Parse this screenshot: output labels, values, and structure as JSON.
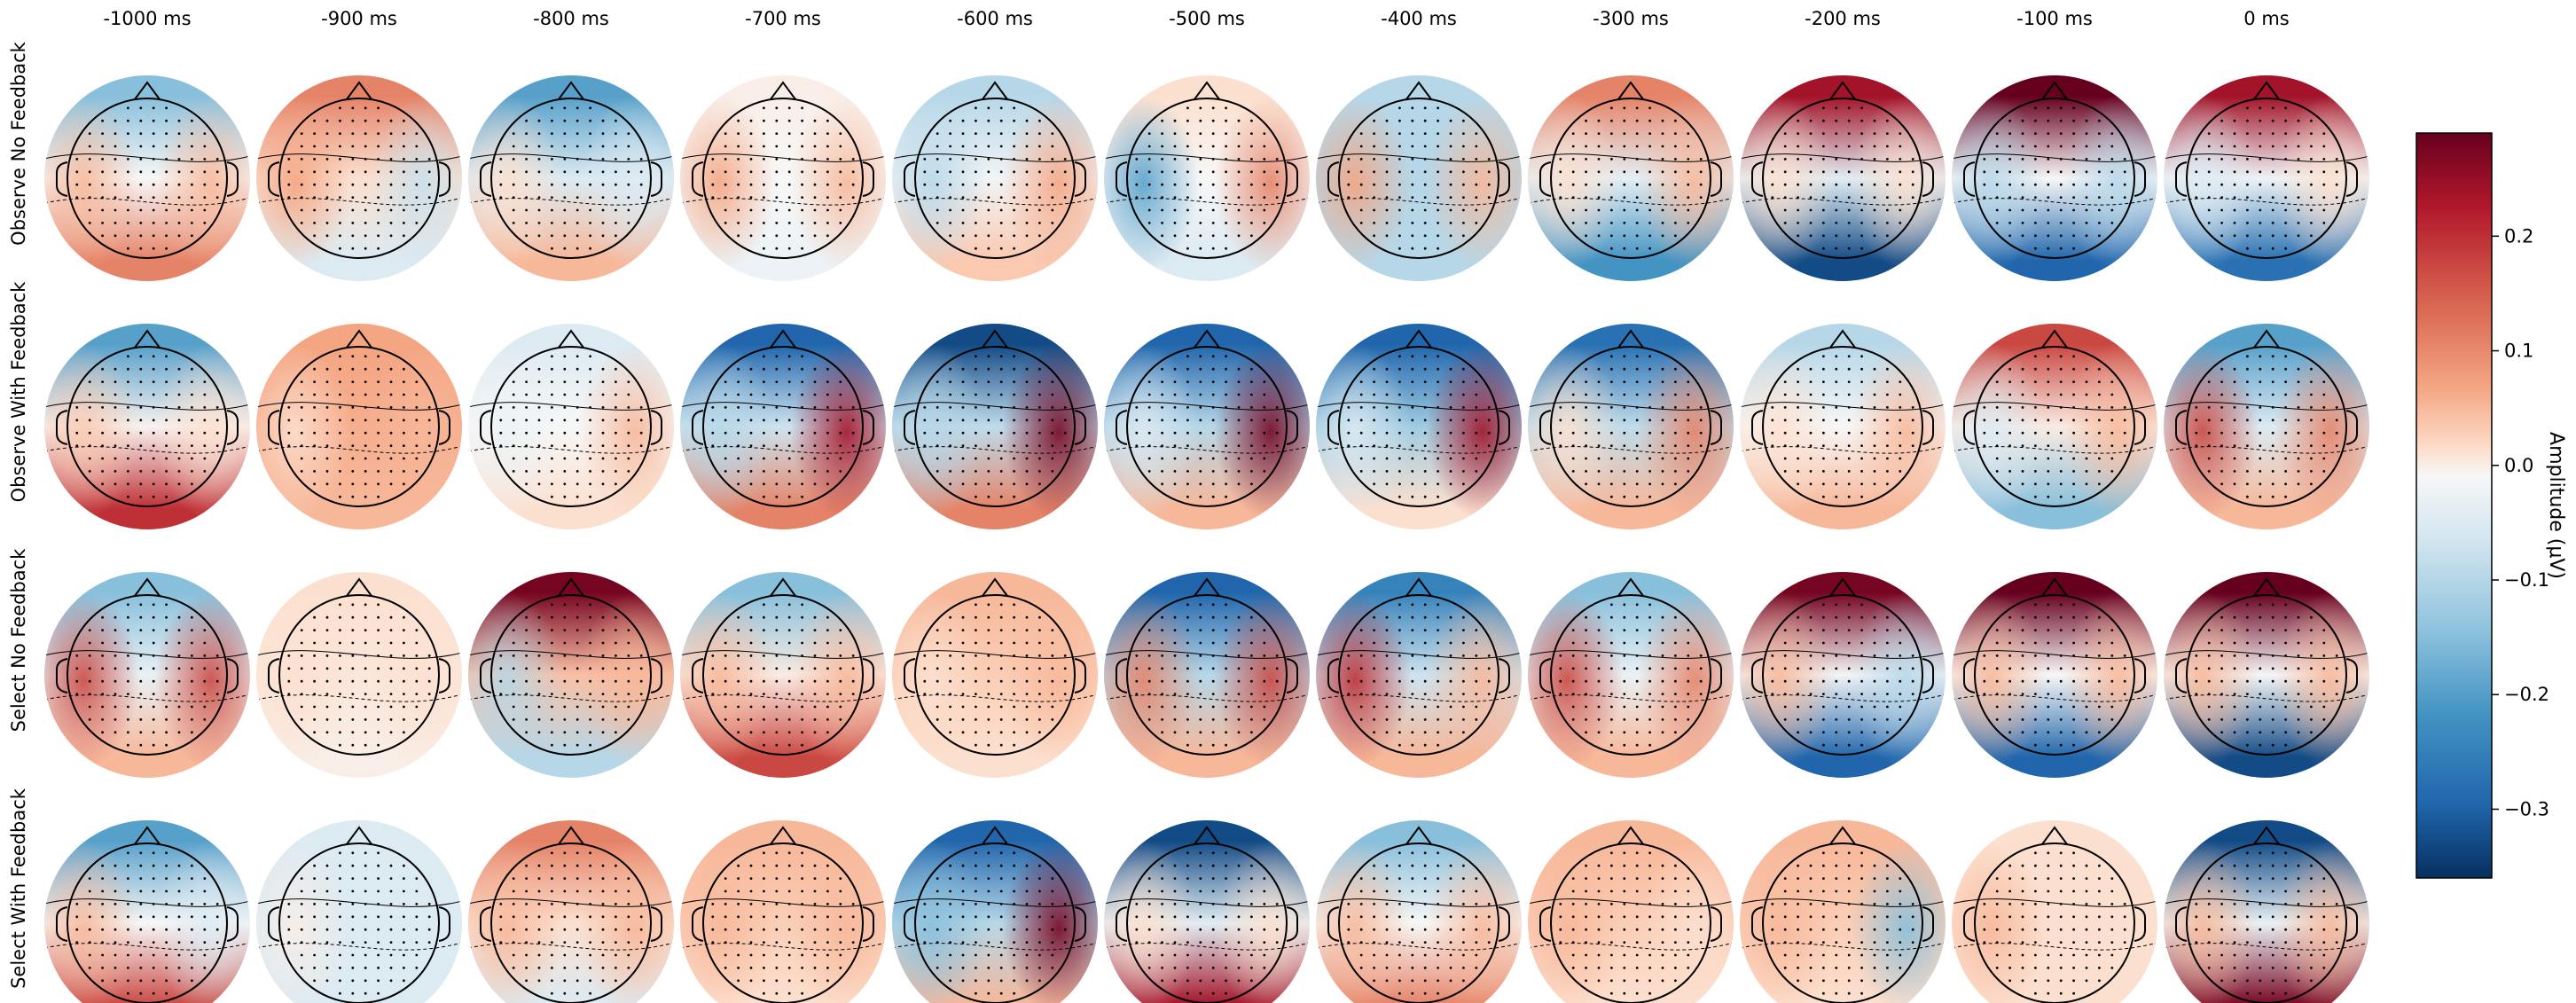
{
  "chart_data": {
    "type": "heatmap",
    "title": "",
    "columns": [
      "-1000 ms",
      "-900 ms",
      "-800 ms",
      "-700 ms",
      "-600 ms",
      "-500 ms",
      "-400 ms",
      "-300 ms",
      "-200 ms",
      "-100 ms",
      "0 ms"
    ],
    "rows": [
      "Observe No Feedback",
      "Observe With Feedback",
      "Select No Feedback",
      "Select With Feedback"
    ],
    "colormap": "RdBu_r",
    "colors": {
      "negative": "#053061",
      "neutral": "#f7f7f7",
      "positive": "#67001f"
    },
    "colorbar": {
      "label": "Amplitude (μV)",
      "range": [
        -0.36,
        0.29
      ],
      "ticks": [
        0.2,
        0.1,
        0.0,
        -0.1,
        -0.2,
        -0.3
      ],
      "tick_labels": [
        "0.2",
        "0.1",
        "0.0",
        "−0.1",
        "−0.2",
        "−0.3"
      ]
    },
    "maps": [
      [
        {
          "front": -0.15,
          "back": 0.15,
          "left": 0.1,
          "right": 0.1
        },
        {
          "front": 0.15,
          "back": -0.05,
          "left": 0.12,
          "right": -0.08
        },
        {
          "front": -0.2,
          "back": 0.1,
          "left": 0.05,
          "right": -0.05
        },
        {
          "front": 0.02,
          "back": -0.02,
          "left": 0.12,
          "right": 0.1
        },
        {
          "front": -0.1,
          "back": 0.08,
          "left": -0.1,
          "right": 0.12
        },
        {
          "front": 0.05,
          "back": -0.05,
          "left": -0.2,
          "right": 0.15
        },
        {
          "front": -0.1,
          "back": -0.1,
          "left": 0.12,
          "right": 0.1
        },
        {
          "front": 0.15,
          "back": -0.22,
          "left": 0.05,
          "right": 0.1
        },
        {
          "front": 0.25,
          "back": -0.33,
          "left": 0.05,
          "right": 0.05
        },
        {
          "front": 0.3,
          "back": -0.3,
          "left": -0.1,
          "right": -0.1
        },
        {
          "front": 0.25,
          "back": -0.28,
          "left": -0.05,
          "right": 0.05
        }
      ],
      [
        {
          "front": -0.2,
          "back": 0.22,
          "left": 0.08,
          "right": 0.05
        },
        {
          "front": 0.12,
          "back": 0.1,
          "left": 0.05,
          "right": 0.1
        },
        {
          "front": -0.05,
          "back": 0.05,
          "left": -0.02,
          "right": 0.1
        },
        {
          "front": -0.3,
          "back": 0.15,
          "left": -0.1,
          "right": 0.25
        },
        {
          "front": -0.33,
          "back": 0.15,
          "left": -0.1,
          "right": 0.28
        },
        {
          "front": -0.3,
          "back": 0.1,
          "left": -0.05,
          "right": 0.28
        },
        {
          "front": -0.3,
          "back": 0.05,
          "left": -0.05,
          "right": 0.25
        },
        {
          "front": -0.28,
          "back": 0.1,
          "left": 0.05,
          "right": 0.15
        },
        {
          "front": -0.1,
          "back": 0.1,
          "left": 0.05,
          "right": 0.1
        },
        {
          "front": 0.2,
          "back": -0.15,
          "left": -0.05,
          "right": 0.1
        },
        {
          "front": -0.2,
          "back": 0.1,
          "left": 0.2,
          "right": 0.15
        }
      ],
      [
        {
          "front": -0.15,
          "back": 0.1,
          "left": 0.2,
          "right": 0.2
        },
        {
          "front": 0.05,
          "back": 0.02,
          "left": 0.05,
          "right": 0.05
        },
        {
          "front": 0.28,
          "back": -0.1,
          "left": -0.1,
          "right": 0.1
        },
        {
          "front": -0.15,
          "back": 0.2,
          "left": 0.1,
          "right": 0.1
        },
        {
          "front": 0.1,
          "back": 0.05,
          "left": 0.05,
          "right": 0.1
        },
        {
          "front": -0.3,
          "back": 0.1,
          "left": 0.15,
          "right": 0.2
        },
        {
          "front": -0.25,
          "back": 0.1,
          "left": 0.22,
          "right": 0.1
        },
        {
          "front": -0.15,
          "back": 0.1,
          "left": 0.2,
          "right": 0.15
        },
        {
          "front": 0.28,
          "back": -0.3,
          "left": 0.1,
          "right": -0.1
        },
        {
          "front": 0.3,
          "back": -0.3,
          "left": 0.1,
          "right": 0.1
        },
        {
          "front": 0.32,
          "back": -0.33,
          "left": 0.1,
          "right": 0.1
        }
      ],
      [
        {
          "front": -0.2,
          "back": 0.2,
          "left": 0.1,
          "right": -0.05
        },
        {
          "front": -0.05,
          "back": -0.05,
          "left": 0.02,
          "right": -0.05
        },
        {
          "front": 0.15,
          "back": -0.05,
          "left": 0.1,
          "right": 0.1
        },
        {
          "front": 0.1,
          "back": 0.05,
          "left": 0.1,
          "right": 0.1
        },
        {
          "front": -0.3,
          "back": 0.1,
          "left": -0.15,
          "right": 0.28
        },
        {
          "front": -0.33,
          "back": 0.25,
          "left": 0.05,
          "right": 0.05
        },
        {
          "front": -0.15,
          "back": 0.15,
          "left": 0.1,
          "right": 0.1
        },
        {
          "front": 0.1,
          "back": 0.05,
          "left": 0.1,
          "right": 0.05
        },
        {
          "front": 0.1,
          "back": 0.05,
          "left": 0.1,
          "right": -0.15
        },
        {
          "front": 0.05,
          "back": 0.05,
          "left": 0.1,
          "right": 0.05
        },
        {
          "front": -0.33,
          "back": 0.28,
          "left": 0.1,
          "right": 0.1
        }
      ]
    ]
  }
}
